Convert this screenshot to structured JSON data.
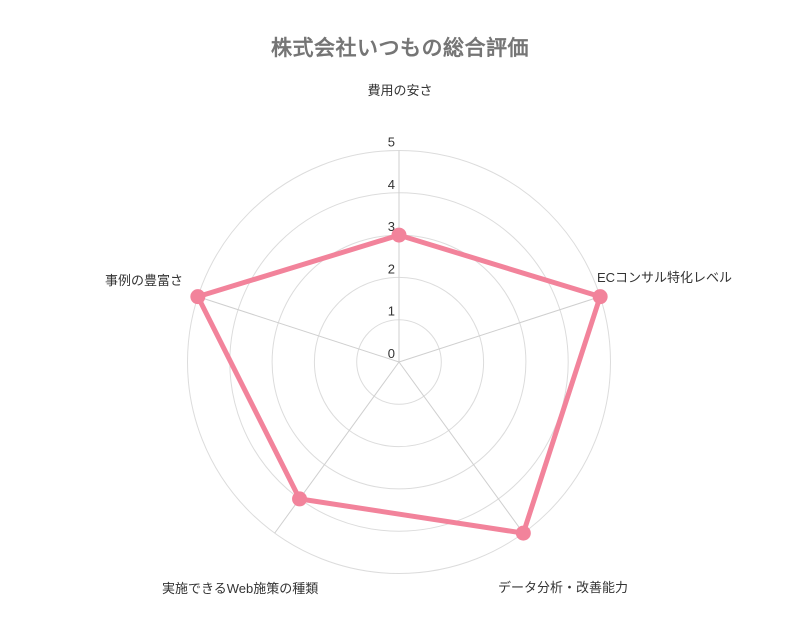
{
  "title": "株式会社いつもの総合評価",
  "chart_data": {
    "type": "radar",
    "title": "株式会社いつもの総合評価",
    "categories": [
      "費用の安さ",
      "ECコンサル特化レベル",
      "データ分析・改善能力",
      "実施できるWeb施策の種類",
      "事例の豊富さ"
    ],
    "values": [
      3,
      5,
      5,
      4,
      5
    ],
    "ticks": [
      "0",
      "1",
      "2",
      "3",
      "4",
      "5"
    ],
    "rlim": [
      0,
      5
    ],
    "grid": "circular-rings",
    "legend": "none",
    "fill": "none",
    "colors": {
      "line": "#F2839B",
      "point": "#F2839B",
      "grid": "#DCDCDC",
      "spoke": "#CFCFCF",
      "tick_text": "#333333",
      "label_text": "#333333",
      "title_text": "#757575",
      "background": "#FFFFFF"
    }
  }
}
